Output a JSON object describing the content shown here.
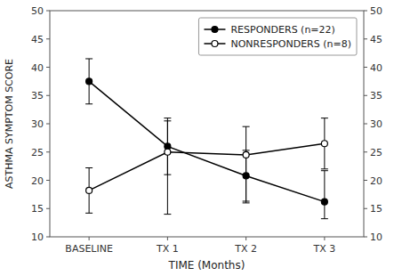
{
  "chart_data": {
    "type": "line",
    "xlabel": "TIME (Months)",
    "ylabel": "ASTHMA SYMPTOM SCORE",
    "categories": [
      "BASELINE",
      "TX 1",
      "TX 2",
      "TX 3"
    ],
    "series": [
      {
        "name": "RESPONDERS (n=22)",
        "color": "black",
        "marker": "filled-circle",
        "line_style": "solid",
        "values": [
          37.5,
          26.0,
          20.8,
          16.2
        ],
        "error_upper": [
          4.0,
          5.0,
          4.5,
          5.5
        ],
        "error_lower": [
          4.0,
          5.0,
          4.5,
          3.0
        ]
      },
      {
        "name": "NONRESPONDERS (n=8)",
        "color": "black",
        "marker": "open-circle",
        "line_style": "solid",
        "values": [
          18.2,
          25.0,
          24.5,
          26.5
        ],
        "error_upper": [
          4.0,
          5.5,
          5.0,
          4.5
        ],
        "error_lower": [
          4.0,
          11.0,
          8.5,
          4.5
        ]
      }
    ],
    "ylim": [
      10,
      50
    ],
    "yticks": [
      10,
      15,
      20,
      25,
      30,
      35,
      40,
      45,
      50
    ],
    "y2lim": [
      10,
      50
    ],
    "y2ticks": [
      10,
      15,
      20,
      25,
      30,
      35,
      40,
      45,
      50
    ],
    "legend": "upper right",
    "grid": false
  }
}
